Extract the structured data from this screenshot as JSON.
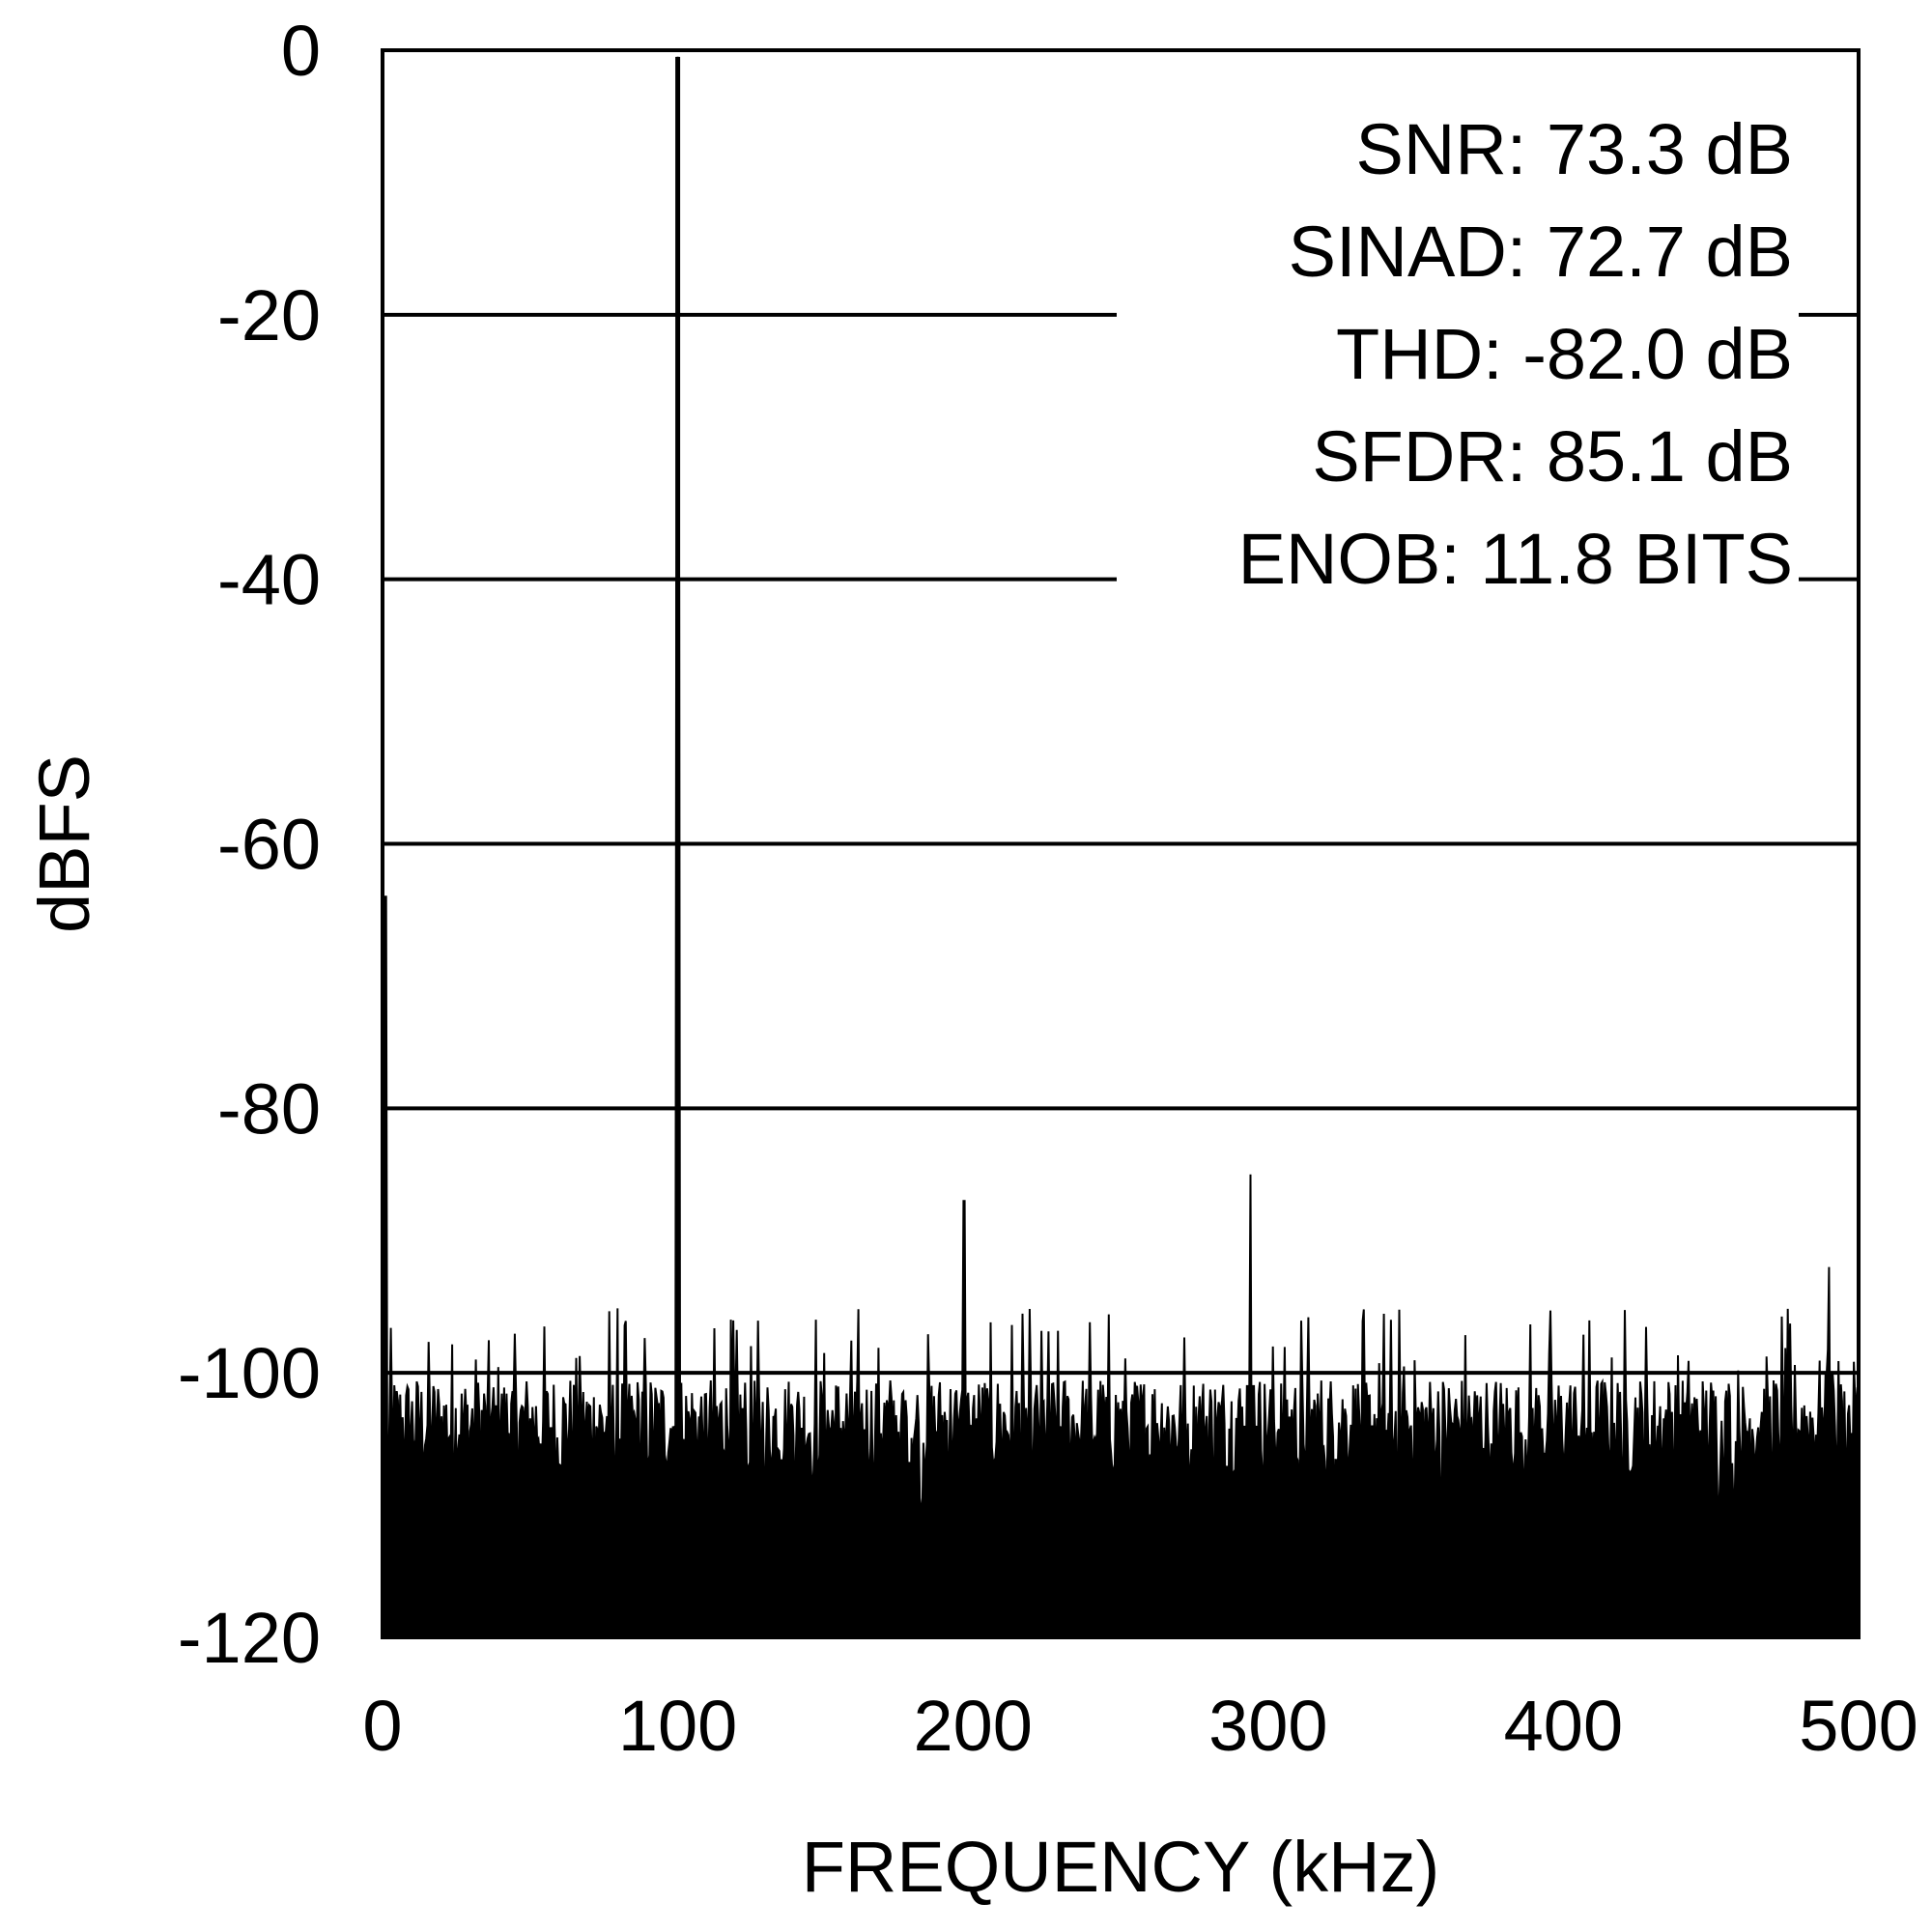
{
  "chart_data": {
    "type": "line",
    "title": "",
    "xlabel": "FREQUENCY (kHz)",
    "ylabel": "dBFS",
    "xlim": [
      0,
      500
    ],
    "ylim": [
      -120,
      0
    ],
    "x_ticks": [
      "0",
      "100",
      "200",
      "300",
      "400",
      "500"
    ],
    "y_ticks": [
      "0",
      "-20",
      "-40",
      "-60",
      "-80",
      "-100",
      "-120"
    ],
    "grid": "horizontal",
    "line_color": "#000000",
    "noise_floor_dBFS": -120,
    "series": [
      {
        "x": [
          0,
          1,
          2,
          98,
          99,
          99.5,
          100,
          100.5,
          101,
          102,
          195,
          196,
          197,
          198,
          199,
          292,
          293,
          294,
          295,
          296,
          488,
          489,
          490,
          491,
          492
        ],
        "y": [
          -106,
          -64,
          -108,
          -105,
          -104,
          -40,
          -0.5,
          -40,
          -104,
          -105,
          -104,
          -102,
          -87,
          -102,
          -104,
          -104,
          -101,
          -85,
          -101,
          -104,
          -104,
          -100,
          -92,
          -100,
          -104
        ]
      }
    ],
    "annotations": [
      "SNR: 73.3 dB",
      "SINAD: 72.7 dB",
      "THD: -82.0 dB",
      "SFDR: 85.1 dB",
      "ENOB: 11.8 BITS"
    ]
  }
}
